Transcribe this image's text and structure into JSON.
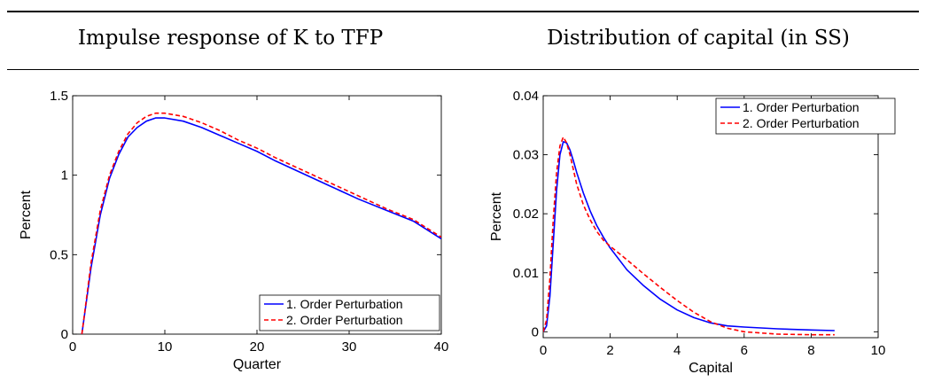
{
  "header": {
    "left_title": "Impulse response of K to TFP",
    "right_title": "Distribution of capital (in SS)"
  },
  "chart_data": [
    {
      "type": "line",
      "title": "Impulse response of K to TFP",
      "xlabel": "Quarter",
      "ylabel": "Percent",
      "xlim": [
        0,
        40
      ],
      "ylim": [
        0,
        1.5
      ],
      "xticks": [
        0,
        10,
        20,
        30,
        40
      ],
      "yticks": [
        0,
        0.5,
        1,
        1.5
      ],
      "xtick_labels": [
        "0",
        "10",
        "20",
        "30",
        "40"
      ],
      "ytick_labels": [
        "0",
        "0.5",
        "1",
        "1.5"
      ],
      "grid": false,
      "legend_position": "bottom-right",
      "series": [
        {
          "name": "1. Order Perturbation",
          "color": "#0000ff",
          "dash": "solid",
          "x": [
            1,
            2,
            3,
            4,
            5,
            6,
            7,
            8,
            9,
            10,
            12,
            14,
            16,
            18,
            20,
            22,
            25,
            28,
            31,
            34,
            37,
            40
          ],
          "y": [
            0,
            0.42,
            0.75,
            0.98,
            1.13,
            1.24,
            1.3,
            1.34,
            1.36,
            1.36,
            1.34,
            1.3,
            1.25,
            1.2,
            1.15,
            1.09,
            1.01,
            0.93,
            0.85,
            0.78,
            0.71,
            0.6
          ]
        },
        {
          "name": "2. Order Perturbation",
          "color": "#ff0000",
          "dash": "dashed",
          "x": [
            1,
            2,
            3,
            4,
            5,
            6,
            7,
            8,
            9,
            10,
            12,
            14,
            16,
            18,
            20,
            22,
            25,
            28,
            31,
            34,
            37,
            40
          ],
          "y": [
            0,
            0.45,
            0.78,
            1.0,
            1.15,
            1.26,
            1.33,
            1.37,
            1.39,
            1.39,
            1.37,
            1.33,
            1.28,
            1.22,
            1.17,
            1.11,
            1.03,
            0.95,
            0.87,
            0.79,
            0.72,
            0.61
          ]
        }
      ]
    },
    {
      "type": "line",
      "title": "Distribution of capital (in SS)",
      "xlabel": "Capital",
      "ylabel": "Percent",
      "xlim": [
        0,
        10
      ],
      "ylim": [
        -0.001,
        0.04
      ],
      "xticks": [
        0,
        2,
        4,
        6,
        8,
        10
      ],
      "yticks": [
        0,
        0.01,
        0.02,
        0.03,
        0.04
      ],
      "xtick_labels": [
        "0",
        "2",
        "4",
        "6",
        "8",
        "10"
      ],
      "ytick_labels": [
        "0",
        "0.01",
        "0.02",
        "0.03",
        "0.04"
      ],
      "grid": false,
      "legend_position": "top-right",
      "series": [
        {
          "name": "1. Order Perturbation",
          "color": "#0000ff",
          "dash": "solid",
          "x": [
            0.0,
            0.1,
            0.2,
            0.3,
            0.4,
            0.5,
            0.6,
            0.7,
            0.8,
            0.9,
            1.0,
            1.2,
            1.4,
            1.6,
            1.8,
            2.0,
            2.5,
            3.0,
            3.5,
            4.0,
            4.5,
            5.0,
            5.5,
            6.0,
            7.0,
            8.0,
            8.7
          ],
          "y": [
            0.0,
            0.001,
            0.006,
            0.015,
            0.024,
            0.03,
            0.0322,
            0.032,
            0.0308,
            0.029,
            0.027,
            0.0235,
            0.0205,
            0.018,
            0.016,
            0.0142,
            0.0105,
            0.0078,
            0.0055,
            0.0037,
            0.0024,
            0.0015,
            0.001,
            0.0008,
            0.0005,
            0.0003,
            0.0002
          ]
        },
        {
          "name": "2. Order Perturbation",
          "color": "#ff0000",
          "dash": "dashed",
          "x": [
            0.0,
            0.1,
            0.2,
            0.3,
            0.4,
            0.5,
            0.6,
            0.7,
            0.8,
            0.9,
            1.0,
            1.2,
            1.4,
            1.6,
            1.8,
            2.0,
            2.5,
            3.0,
            3.5,
            4.0,
            4.5,
            5.0,
            5.5,
            6.0,
            7.0,
            8.0,
            8.7
          ],
          "y": [
            0.0,
            0.002,
            0.009,
            0.019,
            0.027,
            0.0315,
            0.033,
            0.032,
            0.03,
            0.0275,
            0.025,
            0.0215,
            0.019,
            0.017,
            0.0155,
            0.0145,
            0.0122,
            0.0098,
            0.0075,
            0.0053,
            0.0033,
            0.0017,
            0.0006,
            0.0,
            -0.0004,
            -0.0005,
            -0.0005
          ]
        }
      ]
    }
  ]
}
